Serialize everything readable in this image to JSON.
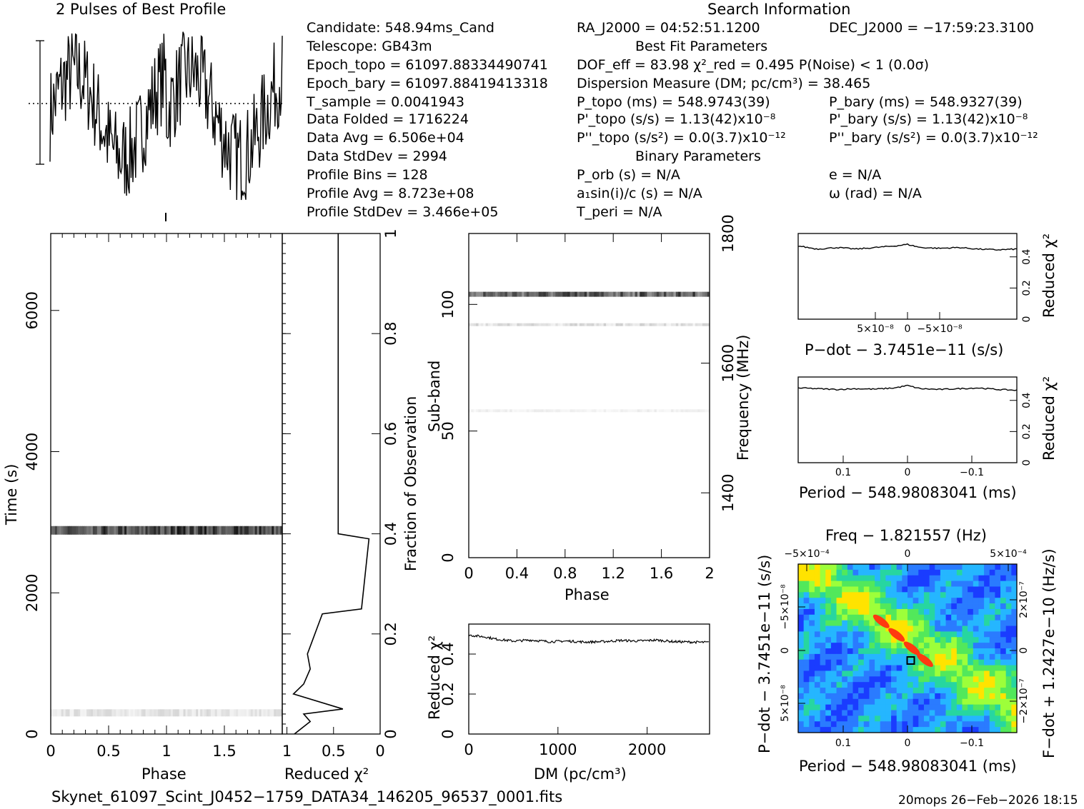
{
  "profile": {
    "title": "2 Pulses of Best Profile"
  },
  "candidate_info": {
    "candidate": "Candidate:  548.94ms_Cand",
    "telescope": "Telescope:  GB43m",
    "epoch_topo": "Epoch_topo = 61097.88334490741",
    "epoch_bary": "Epoch_bary = 61097.88419413318",
    "t_sample": "T_sample      =  0.0041943",
    "data_folded": "Data Folded   =  1716224",
    "data_avg": "Data Avg      =  6.506e+04",
    "data_stddev": "Data StdDev   =  2994",
    "profile_bins": "Profile Bins  =  128",
    "profile_avg": "Profile Avg   =  8.723e+08",
    "profile_stddev": "Profile StdDev =  3.466e+05"
  },
  "search_info": {
    "header": "Search Information",
    "ra": "RA_J2000 = 04:52:51.1200",
    "dec": "DEC_J2000 = −17:59:23.3100",
    "best_fit_header": "Best Fit Parameters",
    "dof": "DOF_eff = 83.98   χ²_red = 0.495   P(Noise) < 1   (0.0σ)",
    "dm": "Dispersion Measure (DM; pc/cm³) = 38.465",
    "p_topo": "P_topo (ms) =  548.9743(39)",
    "p_bary": "P_bary (ms) =  548.9327(39)",
    "pd_topo": "P'_topo (s/s) =  1.13(42)x10⁻⁸",
    "pd_bary": "P'_bary (s/s) =  1.13(42)x10⁻⁸",
    "pdd_topo": "P''_topo (s/s²) = 0.0(3.7)x10⁻¹²",
    "pdd_bary": "P''_bary (s/s²) = 0.0(3.7)x10⁻¹²",
    "binary_header": "Binary Parameters",
    "p_orb": "P_orb (s) = N/A",
    "e": "e = N/A",
    "a1sini": "a₁sin(i)/c (s) = N/A",
    "omega": "ω (rad) = N/A",
    "t_peri": "T_peri = N/A"
  },
  "footer": {
    "filename": "Skynet_61097_Scint_J0452−1759_DATA34_146205_96537_0001.fits",
    "stamp": "20mops 26−Feb−2026 18:15"
  },
  "chart_data": [
    {
      "id": "time_phase",
      "type": "heatmap",
      "xlabel": "Phase",
      "ylabel": "Time (s)",
      "xlim": [
        0,
        2
      ],
      "ylim": [
        0,
        7090
      ],
      "xticks": [
        "0",
        "0.5",
        "1",
        "1.5"
      ],
      "yticks": [
        "0",
        "2000",
        "4000",
        "6000"
      ],
      "bright_bands": [
        {
          "time": 2885,
          "intensity": "strong"
        },
        {
          "time": 300,
          "intensity": "weak"
        }
      ]
    },
    {
      "id": "reduced_chi2_vs_fraction",
      "type": "line",
      "xlabel": "Reduced χ²",
      "ylabel": "Fraction of Observation",
      "xlim": [
        1.05,
        0
      ],
      "ylim": [
        0,
        1
      ],
      "xticks": [
        "1",
        "0.5",
        "0"
      ],
      "yticks": [
        "0",
        "0.2",
        "0.4",
        "0.6",
        "0.8",
        "1"
      ],
      "x": [
        0.92,
        0.75,
        0.82,
        0.4,
        0.93,
        0.82,
        0.75,
        0.78,
        0.72,
        0.62,
        0.2,
        0.12,
        0.45,
        0.45
      ],
      "y": [
        0.0,
        0.025,
        0.04,
        0.05,
        0.08,
        0.1,
        0.13,
        0.16,
        0.19,
        0.24,
        0.25,
        0.39,
        0.4,
        1.0
      ]
    },
    {
      "id": "subband_phase",
      "type": "heatmap",
      "xlabel": "Phase",
      "ylabel": "Sub-band",
      "y2label": "Frequency (MHz)",
      "xlim": [
        0,
        2
      ],
      "ylim": [
        0,
        128
      ],
      "y2lim": [
        1300,
        1800
      ],
      "xticks": [
        "0",
        "0.4",
        "0.8",
        "1.2",
        "1.6",
        "2"
      ],
      "yticks": [
        "0",
        "50",
        "100"
      ],
      "y2ticks": [
        "1400",
        "1600",
        "1800"
      ],
      "bright_bands": [
        {
          "subband": 104,
          "intensity": "strong"
        },
        {
          "subband": 92,
          "intensity": "weak"
        },
        {
          "subband": 58,
          "intensity": "faint"
        }
      ]
    },
    {
      "id": "dm_curve",
      "type": "line",
      "xlabel": "DM (pc/cm³)",
      "ylabel": "Reduced χ²",
      "xlim": [
        0,
        2700
      ],
      "ylim": [
        0,
        0.55
      ],
      "xticks": [
        "0",
        "1000",
        "2000"
      ],
      "yticks": [
        "0",
        "0.2",
        "0.4"
      ],
      "x": [
        0,
        100,
        200,
        300,
        500,
        700,
        900,
        1100,
        1300,
        1500,
        1700,
        1900,
        2100,
        2300,
        2500,
        2700
      ],
      "y": [
        0.495,
        0.49,
        0.485,
        0.475,
        0.465,
        0.47,
        0.462,
        0.465,
        0.46,
        0.462,
        0.468,
        0.465,
        0.47,
        0.462,
        0.46,
        0.458
      ]
    },
    {
      "id": "pdot_curve",
      "type": "line",
      "xlabel": "P−dot − 3.7451e−11 (s/s)",
      "ylabel": "Reduced χ²",
      "xlim": [
        1.7e-07,
        -1.7e-07
      ],
      "ylim": [
        0,
        0.55
      ],
      "xticks": [
        "5×10⁻⁸",
        "0",
        "−5×10⁻⁸"
      ],
      "yticks": [
        "0",
        "0.2",
        "0.4"
      ],
      "x": [
        1.7e-07,
        1.4e-07,
        1.1e-07,
        8e-08,
        5e-08,
        2e-08,
        0,
        -2e-08,
        -5e-08,
        -8e-08,
        -1.1e-07,
        -1.4e-07,
        -1.7e-07
      ],
      "y": [
        0.47,
        0.45,
        0.46,
        0.45,
        0.46,
        0.47,
        0.48,
        0.46,
        0.455,
        0.46,
        0.45,
        0.445,
        0.45
      ]
    },
    {
      "id": "period_curve",
      "type": "line",
      "xlabel": "Period − 548.98083041 (ms)",
      "ylabel": "Reduced χ²",
      "xlim": [
        0.17,
        -0.17
      ],
      "ylim": [
        0,
        0.55
      ],
      "xticks": [
        "0.1",
        "0",
        "−0.1"
      ],
      "yticks": [
        "0",
        "0.2",
        "0.4"
      ],
      "x": [
        0.17,
        0.14,
        0.11,
        0.08,
        0.05,
        0.02,
        0,
        -0.02,
        -0.05,
        -0.08,
        -0.11,
        -0.14,
        -0.17
      ],
      "y": [
        0.48,
        0.475,
        0.47,
        0.475,
        0.472,
        0.48,
        0.495,
        0.475,
        0.47,
        0.475,
        0.48,
        0.47,
        0.465
      ]
    },
    {
      "id": "p_pdot_plane",
      "type": "heatmap",
      "title": "Freq − 1.821557 (Hz)",
      "xlabel": "Period − 548.98083041 (ms)",
      "ylabel": "P−dot − 3.7451e−11 (s/s)",
      "y2label": "F−dot + 1.2427e−10 (Hz/s)",
      "xlim": [
        0.17,
        -0.17
      ],
      "xticks": [
        "0.1",
        "0",
        "−0.1"
      ],
      "x2ticks": [
        "−5×10⁻⁴",
        "0",
        "5×10⁻⁴"
      ],
      "yticks": [
        "−5×10⁻⁸",
        "0",
        "5×10⁻⁸"
      ],
      "y2ticks": [
        "2×10⁻⁷",
        "0",
        "−2×10⁻⁷"
      ],
      "best_point": {
        "period": -0.005,
        "pdot": 1e-08
      }
    }
  ],
  "colors": {
    "axis": "#000000",
    "cold": "#1a3cff",
    "mid": "#27d6a0",
    "warm": "#9dff3a",
    "hot": "#ff3a10"
  }
}
